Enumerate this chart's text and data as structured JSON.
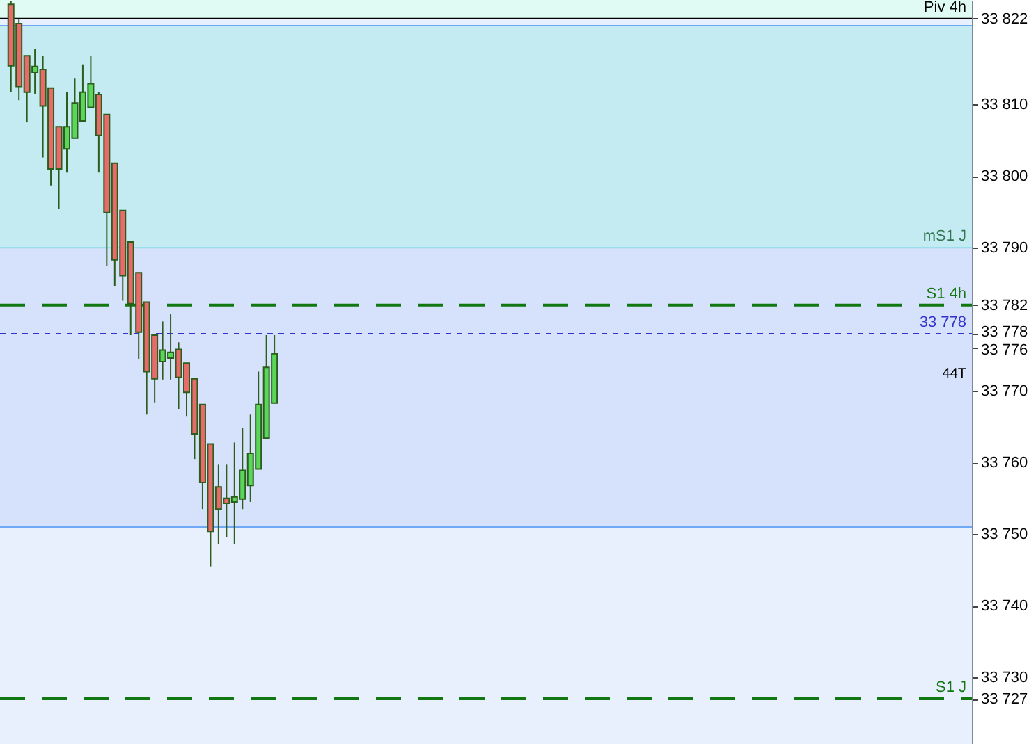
{
  "chart_data": {
    "type": "candlestick",
    "categories": [
      null,
      null,
      null,
      null,
      null,
      null,
      null,
      null,
      null,
      null,
      null,
      null,
      null,
      null,
      null,
      null,
      null,
      null,
      null,
      null,
      null,
      null,
      null,
      null,
      null,
      null,
      null,
      null,
      null,
      null,
      null,
      null,
      null,
      null,
      null,
      null,
      null,
      null,
      null,
      null,
      null,
      null,
      null,
      null,
      null,
      null,
      null,
      null,
      null,
      null,
      null,
      null,
      null,
      null,
      null,
      null,
      null,
      null,
      null,
      null,
      null,
      null,
      null,
      null,
      null,
      null,
      null,
      null,
      null,
      null,
      null,
      null,
      null,
      null,
      null,
      null,
      null,
      null,
      null,
      null,
      null,
      null,
      null,
      null,
      null,
      null,
      null,
      null,
      null,
      null,
      null,
      null,
      null,
      null,
      null,
      null,
      null,
      null,
      null,
      null,
      null,
      null,
      null,
      null,
      null,
      null,
      null,
      null,
      null,
      null,
      null,
      null,
      null,
      null,
      null,
      null,
      null,
      null,
      null,
      null
    ],
    "ohlc": [
      [
        33824,
        33824.5,
        33811.7,
        33815.4
      ],
      [
        33821.3,
        33822,
        33810.6,
        33812.5
      ],
      [
        33816.8,
        33816.8,
        33807.5,
        33811.7
      ],
      [
        33814.5,
        33817.8,
        33811.5,
        33815.3
      ],
      [
        33814.9,
        33816.8,
        33802.6,
        33809.8
      ],
      [
        33812.3,
        33812.3,
        33798.7,
        33801
      ],
      [
        33806.9,
        33806.9,
        33795.4,
        33801
      ],
      [
        33803.8,
        33811.7,
        33800.5,
        33806.9
      ],
      [
        33805.3,
        33813.7,
        33805.3,
        33810.2
      ],
      [
        33807.7,
        33815.6,
        33807.7,
        33811.7
      ],
      [
        33809.6,
        33816.8,
        33809.6,
        33812.9
      ],
      [
        33811.4,
        33811.7,
        33800.5,
        33805.7
      ],
      [
        33808.6,
        33808.6,
        33787.5,
        33794.9
      ],
      [
        33801.8,
        33801.8,
        33784.6,
        33788.3
      ],
      [
        33795.2,
        33795.2,
        33782.6,
        33786.1
      ],
      [
        33790.8,
        33790.8,
        33777.8,
        33782.2
      ],
      [
        33786.5,
        33786.5,
        33774.5,
        33778.2
      ],
      [
        33782.4,
        33782.4,
        33766.7,
        33772.7
      ],
      [
        33777.8,
        33777.8,
        33768.4,
        33771.7
      ],
      [
        33774.1,
        33779.7,
        33771.6,
        33775.7
      ],
      [
        33774.6,
        33780.7,
        33771.6,
        33775.4
      ],
      [
        33775.8,
        33776.8,
        33767.5,
        33771.9
      ],
      [
        33773.9,
        33773.9,
        33766.5,
        33769.8
      ],
      [
        33771.7,
        33771.7,
        33760.5,
        33764
      ],
      [
        33768.1,
        33768.1,
        33753.5,
        33757.2
      ],
      [
        33762.6,
        33762.6,
        33745.5,
        33750.4
      ],
      [
        33756.6,
        33759.7,
        33748.6,
        33753.5
      ],
      [
        33755,
        33759.7,
        33749.6,
        33754.3
      ],
      [
        33754.5,
        33762.8,
        33748.6,
        33755.2
      ],
      [
        33754.9,
        33764.8,
        33753.5,
        33758.9
      ],
      [
        33756.8,
        33766.7,
        33754.5,
        33761.3
      ],
      [
        33759.1,
        33772.7,
        33759.1,
        33768.1
      ],
      [
        33763.4,
        33777.8,
        33763.4,
        33773.3
      ],
      [
        33768.3,
        33777.8,
        33768.3,
        33775.2
      ],
      null,
      null,
      null,
      null,
      null,
      null,
      null,
      null,
      null,
      null,
      null,
      null,
      null,
      null,
      null,
      null,
      null,
      null,
      null,
      null,
      null,
      null,
      null,
      null,
      null,
      null,
      null,
      null,
      null,
      null,
      null,
      null,
      null,
      null,
      null,
      null,
      null,
      null,
      null,
      null,
      null,
      null,
      null,
      null,
      null,
      null,
      null,
      null,
      null,
      null,
      null,
      null,
      null,
      null,
      null,
      null,
      null,
      null,
      null,
      null,
      null,
      null,
      null,
      null,
      null,
      null,
      null,
      null,
      null,
      null,
      null,
      null,
      null,
      null,
      null,
      null,
      null,
      null,
      null,
      null,
      null,
      null,
      null,
      null,
      null,
      null
    ],
    "ylim": [
      33720.7,
      33824.6
    ],
    "yticks": [
      {
        "value": 33727,
        "label": "33 727"
      },
      {
        "value": 33730,
        "label": "33 730"
      },
      {
        "value": 33740,
        "label": "33 740"
      },
      {
        "value": 33750,
        "label": "33 750"
      },
      {
        "value": 33760,
        "label": "33 760"
      },
      {
        "value": 33770,
        "label": "33 770"
      },
      {
        "value": 33776,
        "label": "33 776"
      },
      {
        "value": 33778,
        "label": "33 778"
      },
      {
        "value": 33782,
        "label": "33 782"
      },
      {
        "value": 33790,
        "label": "33 790"
      },
      {
        "value": 33800,
        "label": "33 800"
      },
      {
        "value": 33810,
        "label": "33 810"
      },
      {
        "value": 33822,
        "label": "33 822"
      }
    ],
    "tick_labels": "y",
    "grid": false,
    "bands": [
      {
        "axis": "y",
        "from": 33822,
        "to": 33824.6,
        "color": "#e0fbf3"
      },
      {
        "axis": "y",
        "from": 33790,
        "to": 33821,
        "color": "#c4eaf2"
      },
      {
        "axis": "y",
        "from": 33751,
        "to": 33790,
        "color": "#d6e2fb"
      }
    ],
    "ref_lines": [
      {
        "axis": "y",
        "value": 33822,
        "label": "Piv 4h",
        "color": "#000000",
        "line_style": "solid"
      },
      {
        "axis": "y",
        "value": 33821,
        "color": "#6fa8f5",
        "line_style": "solid"
      },
      {
        "axis": "y",
        "value": 33790,
        "label": "mS1 J",
        "color": "#8fd8e8",
        "line_style": "solid"
      },
      {
        "axis": "y",
        "value": 33782,
        "label": "S1 4h",
        "color": "#117711",
        "line_style": "dashed"
      },
      {
        "axis": "y",
        "value": 33778,
        "label": "33 778",
        "color": "#3333cc",
        "line_style": "dotted"
      },
      {
        "axis": "y",
        "value": 33751,
        "color": "#6fa8f5",
        "line_style": "solid"
      },
      {
        "axis": "y",
        "value": 33727,
        "label": "S1 J",
        "color": "#117711",
        "line_style": "dashed"
      }
    ],
    "annotations": [
      "44T"
    ]
  }
}
